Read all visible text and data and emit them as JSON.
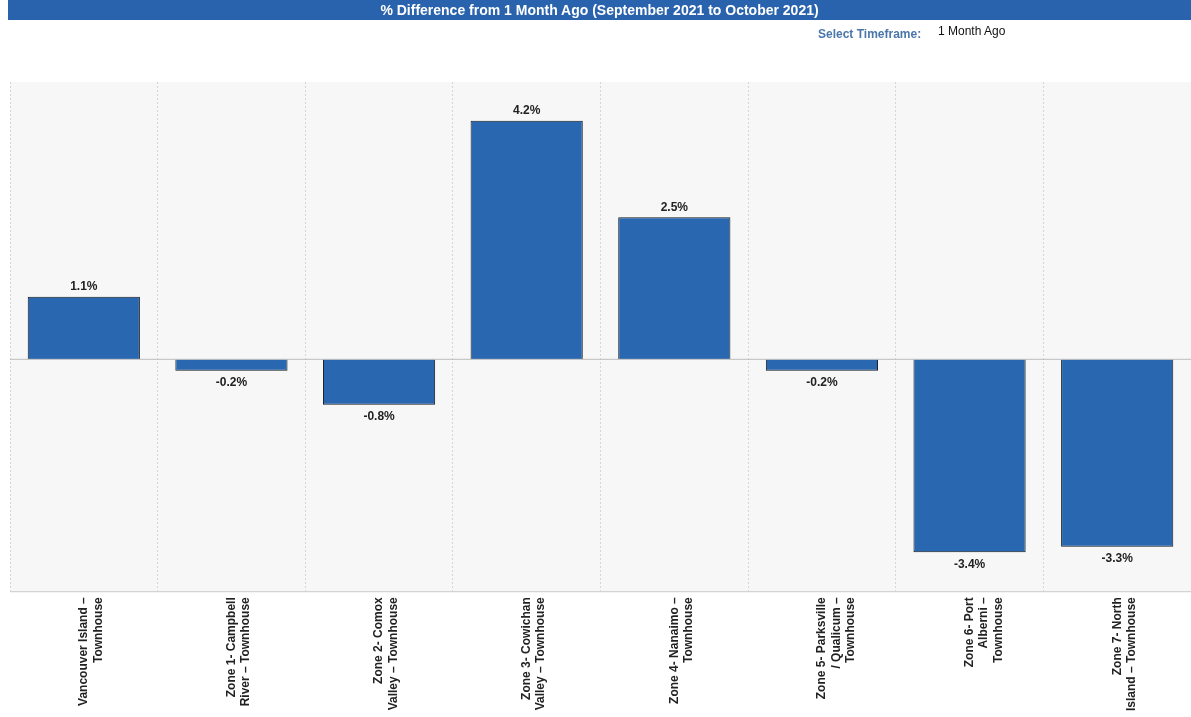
{
  "chart_data": {
    "type": "bar",
    "title": "% Difference from 1 Month Ago (September 2021 to October 2021)",
    "annotations": [
      "Select Timeframe:",
      "1 Month Ago"
    ],
    "categories": [
      "Vancouver Island – Townhouse",
      "Zone 1- Campbell River – Townhouse",
      "Zone 2- Comox Valley – Townhouse",
      "Zone 3- Cowichan Valley – Townhouse",
      "Zone 4- Nanaimo – Townhouse",
      "Zone 5- Parksville / Qualicum – Townhouse",
      "Zone 6- Port Alberni – Townhouse",
      "Zone 7- North Island – Townhouse"
    ],
    "values": [
      1.1,
      -0.2,
      -0.8,
      4.2,
      2.5,
      -0.2,
      -3.4,
      -3.3
    ],
    "value_labels": [
      "1.1%",
      "-0.2%",
      "-0.8%",
      "4.2%",
      "2.5%",
      "-0.2%",
      "-3.4%",
      "-3.3%"
    ],
    "color": "#2a67b1",
    "grid": "x",
    "legend": false
  }
}
